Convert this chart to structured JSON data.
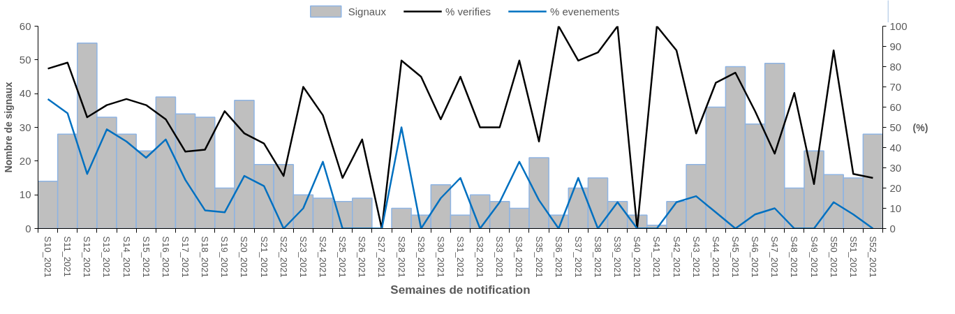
{
  "chart_data": {
    "type": "bar",
    "categories": [
      "S10_2021",
      "S11_2021",
      "S12_2021",
      "S13_2021",
      "S14_2021",
      "S15_2021",
      "S16_2021",
      "S17_2021",
      "S18_2021",
      "S19_2021",
      "S20_2021",
      "S21_2021",
      "S22_2021",
      "S23_2021",
      "S24_2021",
      "S25_2021",
      "S26_2021",
      "S27_2021",
      "S28_2021",
      "S29_2021",
      "S30_2021",
      "S31_2021",
      "S32_2021",
      "S33_2021",
      "S34_2021",
      "S35_2021",
      "S36_2021",
      "S37_2021",
      "S38_2021",
      "S39_2021",
      "S40_2021",
      "S41_2021",
      "S42_2021",
      "S43_2021",
      "S44_2021",
      "S45_2021",
      "S46_2021",
      "S47_2021",
      "S48_2021",
      "S49_2021",
      "S50_2021",
      "S51_2021",
      "S52_2021"
    ],
    "series": [
      {
        "name": "Signaux",
        "color": "#bfbfbf",
        "values": [
          14,
          28,
          55,
          33,
          28,
          23,
          39,
          34,
          33,
          12,
          38,
          19,
          19,
          10,
          9,
          8,
          9,
          0,
          6,
          4,
          13,
          4,
          10,
          8,
          6,
          21,
          4,
          12,
          15,
          8,
          4,
          1,
          8,
          19,
          36,
          48,
          31,
          49,
          12,
          23,
          16,
          15,
          28
        ]
      },
      {
        "name": "% verifies",
        "type": "line",
        "axis": "y2",
        "color": "#000000",
        "values": [
          79,
          82,
          55,
          61,
          64,
          61,
          54,
          38,
          39,
          58,
          47,
          42,
          26,
          70,
          56,
          25,
          44,
          0,
          83,
          75,
          54,
          75,
          50,
          50,
          83,
          43,
          100,
          83,
          87,
          100,
          0,
          100,
          88,
          47,
          72,
          77,
          58,
          37,
          67,
          22,
          88,
          27,
          25
        ]
      },
      {
        "name": "% evenements",
        "type": "line",
        "axis": "y2",
        "color": "#0070c0",
        "values": [
          64,
          57,
          27,
          49,
          43,
          35,
          44,
          24,
          9,
          8,
          26,
          21,
          0,
          10,
          33,
          0,
          0,
          0,
          50,
          0,
          15,
          25,
          0,
          13,
          33,
          14,
          0,
          25,
          0,
          13,
          0,
          0,
          13,
          16,
          8,
          0,
          7,
          10,
          0,
          0,
          13,
          7,
          0
        ]
      }
    ],
    "xlabel": "Semaines de notification",
    "ylabel": "Nombre de signaux",
    "y2label": "(%)",
    "ylim": [
      0,
      60
    ],
    "yticks": [
      0,
      10,
      20,
      30,
      40,
      50,
      60
    ],
    "y2lim": [
      0,
      100
    ],
    "y2ticks": [
      0,
      10,
      20,
      30,
      40,
      50,
      60,
      70,
      80,
      90,
      100
    ],
    "grid": false,
    "legend": "top",
    "marker": "none",
    "line_style": "solid"
  }
}
